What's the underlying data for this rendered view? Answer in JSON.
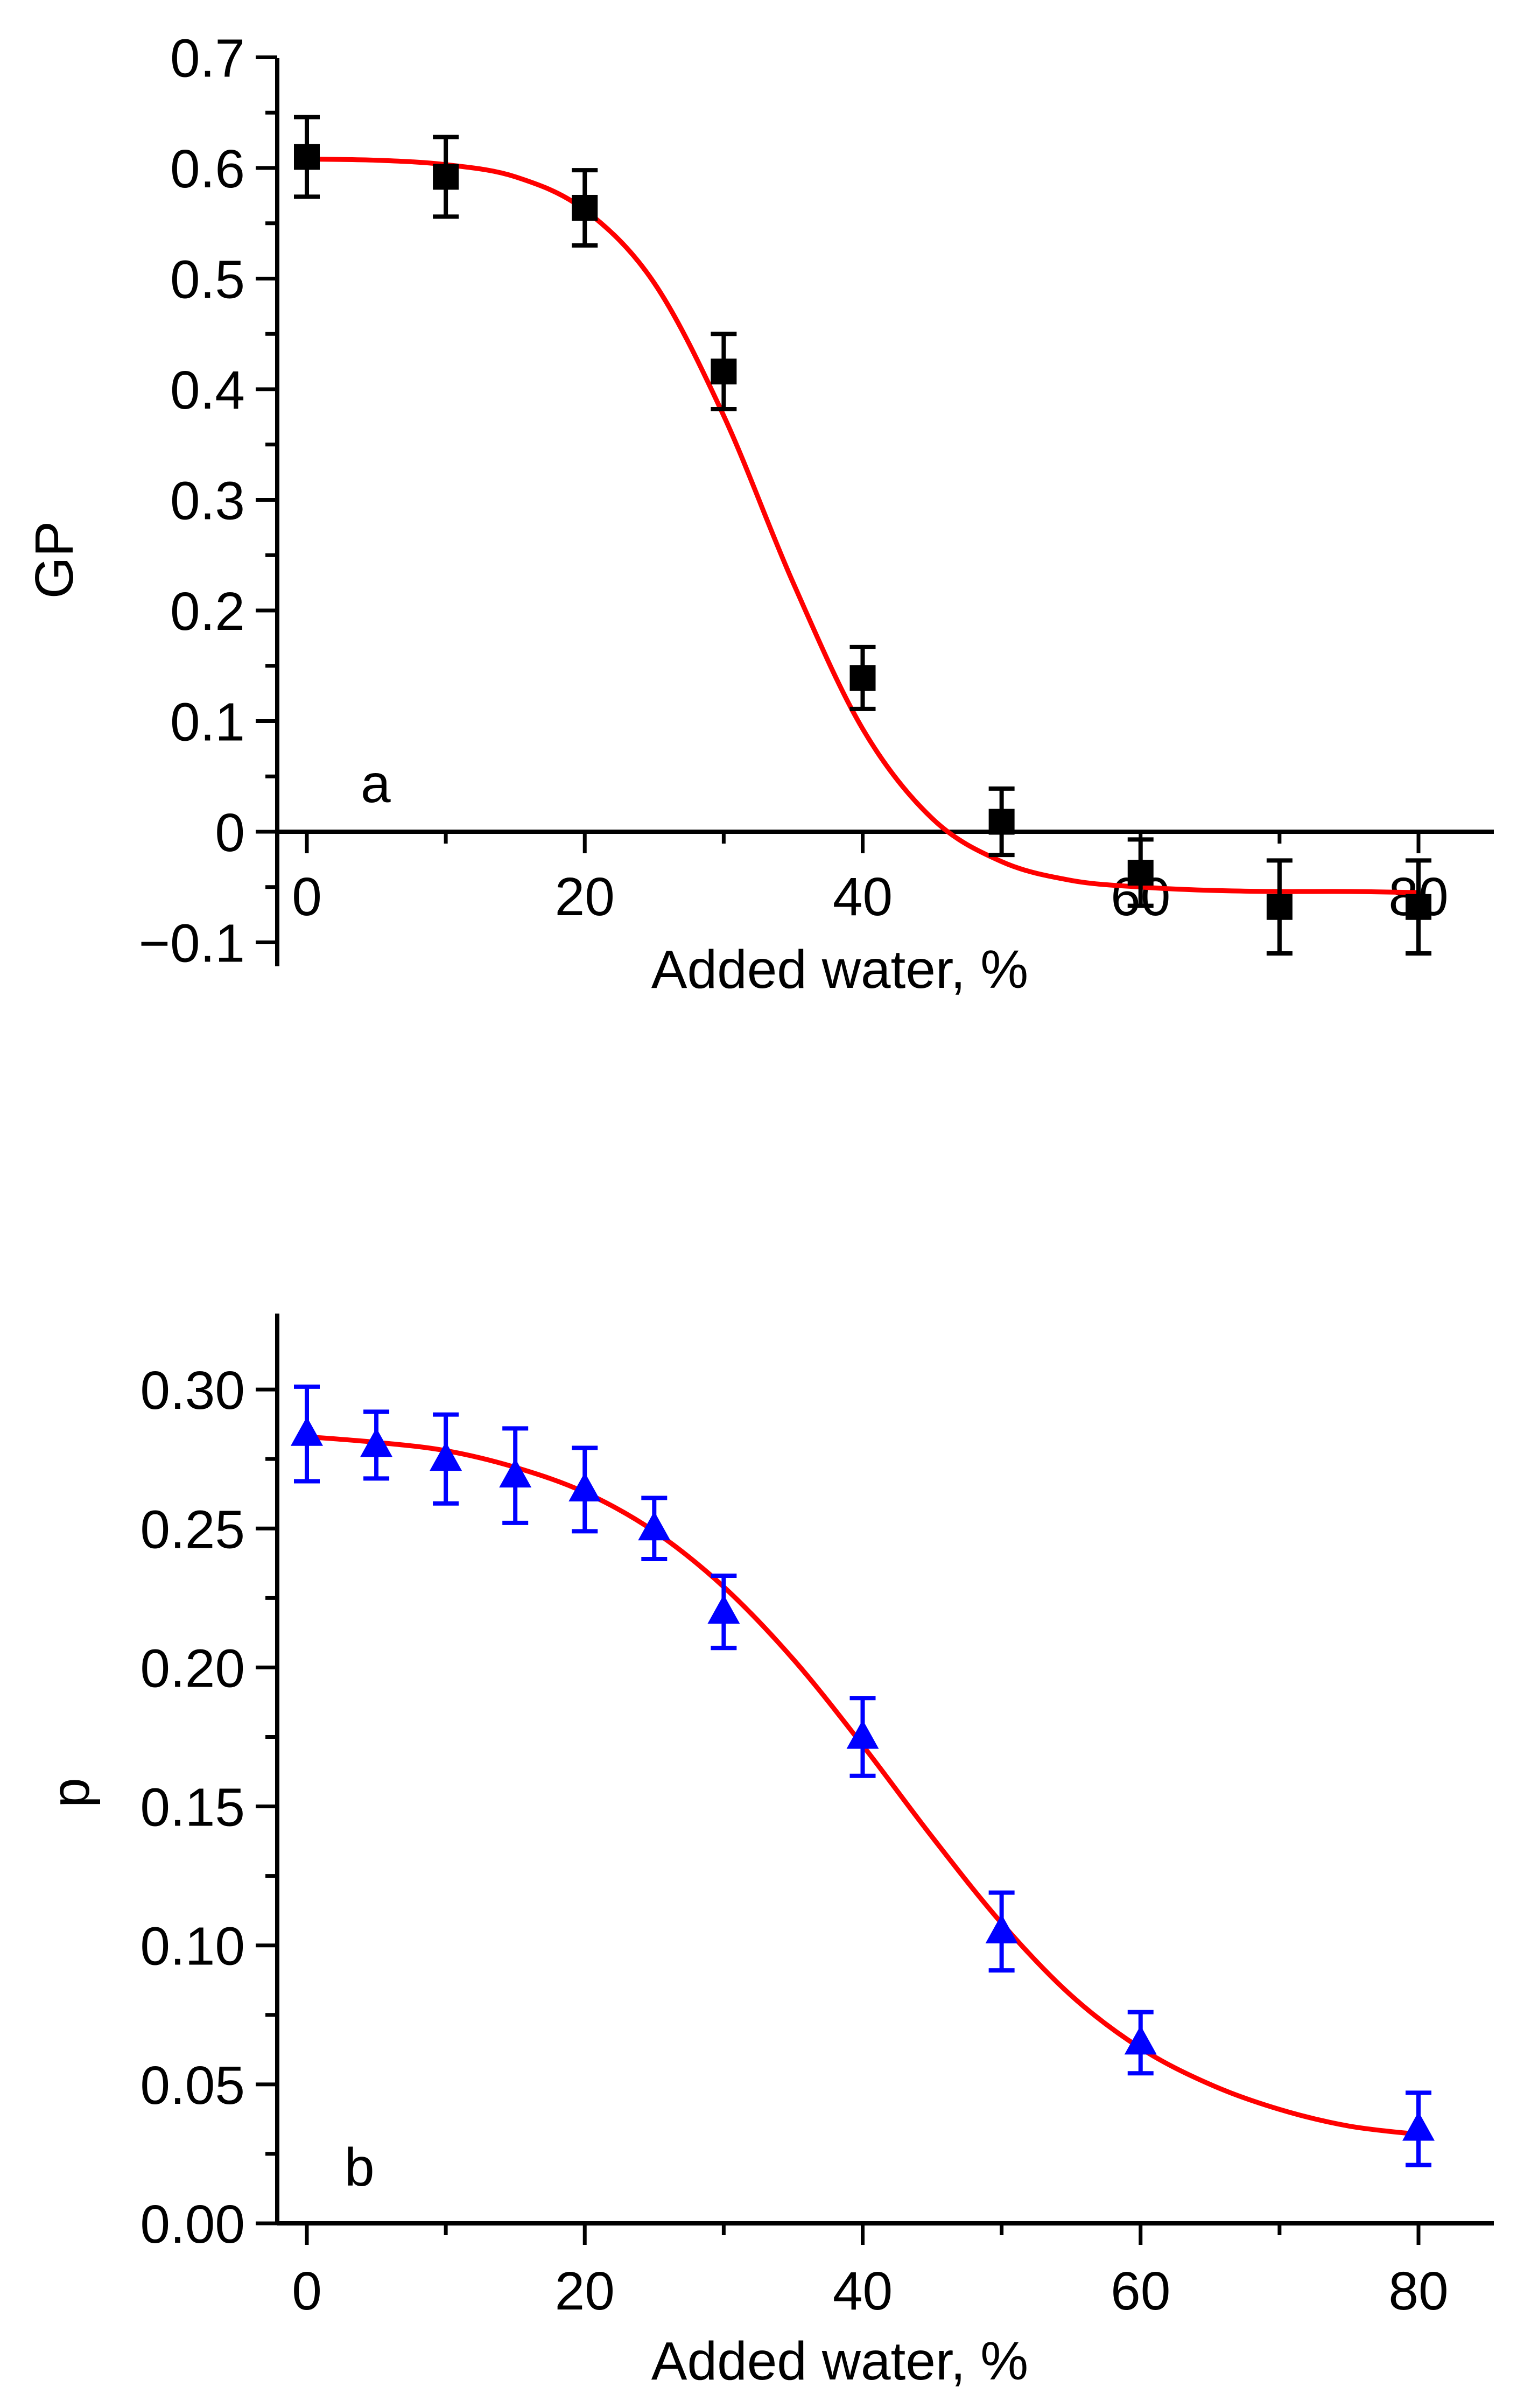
{
  "chart_data": [
    {
      "type": "scatter",
      "panel_label": "a",
      "xlabel": "Added water, %",
      "ylabel": "GP",
      "xlim": [
        -5,
        85
      ],
      "ylim": [
        -0.12,
        0.7
      ],
      "x_ticks": [
        0,
        20,
        40,
        60,
        80
      ],
      "x_tick_labels": [
        "0",
        "20",
        "40",
        "60",
        "80"
      ],
      "y_ticks": [
        -0.1,
        0,
        0.1,
        0.2,
        0.3,
        0.4,
        0.5,
        0.6,
        0.7
      ],
      "y_tick_labels": [
        "−0.1",
        "0",
        "0.1",
        "0.2",
        "0.3",
        "0.4",
        "0.5",
        "0.6",
        "0.7"
      ],
      "marker": "square",
      "marker_color": "#000000",
      "fit_color": "#ff0000",
      "grid": false,
      "series": [
        {
          "name": "GP",
          "x": [
            0,
            10,
            20,
            30,
            40,
            50,
            60,
            70,
            80
          ],
          "y": [
            0.61,
            0.592,
            0.564,
            0.416,
            0.139,
            0.009,
            -0.037,
            -0.068,
            -0.068
          ],
          "err": [
            0.036,
            0.036,
            0.034,
            0.034,
            0.028,
            0.03,
            0.03,
            0.042,
            0.042
          ]
        }
      ],
      "fit": {
        "x": [
          0,
          5,
          10,
          15,
          20,
          25,
          30,
          35,
          40,
          45,
          50,
          55,
          60,
          65,
          70,
          75,
          80
        ],
        "y": [
          0.608,
          0.607,
          0.603,
          0.592,
          0.562,
          0.496,
          0.376,
          0.225,
          0.093,
          0.012,
          -0.027,
          -0.044,
          -0.05,
          -0.053,
          -0.054,
          -0.054,
          -0.055
        ]
      }
    },
    {
      "type": "scatter",
      "panel_label": "b",
      "xlabel": "Added water, %",
      "ylabel": "p",
      "xlim": [
        -5,
        85
      ],
      "ylim": [
        0.0,
        0.325
      ],
      "x_ticks": [
        0,
        20,
        40,
        60,
        80
      ],
      "x_tick_labels": [
        "0",
        "20",
        "40",
        "60",
        "80"
      ],
      "y_ticks": [
        0.0,
        0.05,
        0.1,
        0.15,
        0.2,
        0.25,
        0.3
      ],
      "y_tick_labels": [
        "0.00",
        "0.05",
        "0.10",
        "0.15",
        "0.20",
        "0.25",
        "0.30"
      ],
      "marker": "triangle",
      "marker_color": "#0000ff",
      "fit_color": "#ff0000",
      "grid": false,
      "series": [
        {
          "name": "p",
          "x": [
            0,
            5,
            10,
            15,
            20,
            25,
            30,
            40,
            50,
            60,
            80
          ],
          "y": [
            0.284,
            0.28,
            0.275,
            0.269,
            0.264,
            0.25,
            0.22,
            0.175,
            0.105,
            0.065,
            0.034
          ],
          "err": [
            0.017,
            0.012,
            0.016,
            0.017,
            0.015,
            0.011,
            0.013,
            0.014,
            0.014,
            0.011,
            0.013
          ]
        }
      ],
      "fit": {
        "x": [
          0,
          5,
          10,
          15,
          20,
          25,
          30,
          35,
          40,
          45,
          50,
          55,
          60,
          65,
          70,
          75,
          80
        ],
        "y": [
          0.283,
          0.281,
          0.278,
          0.272,
          0.263,
          0.249,
          0.229,
          0.203,
          0.172,
          0.139,
          0.108,
          0.082,
          0.063,
          0.05,
          0.041,
          0.035,
          0.032
        ]
      }
    }
  ]
}
